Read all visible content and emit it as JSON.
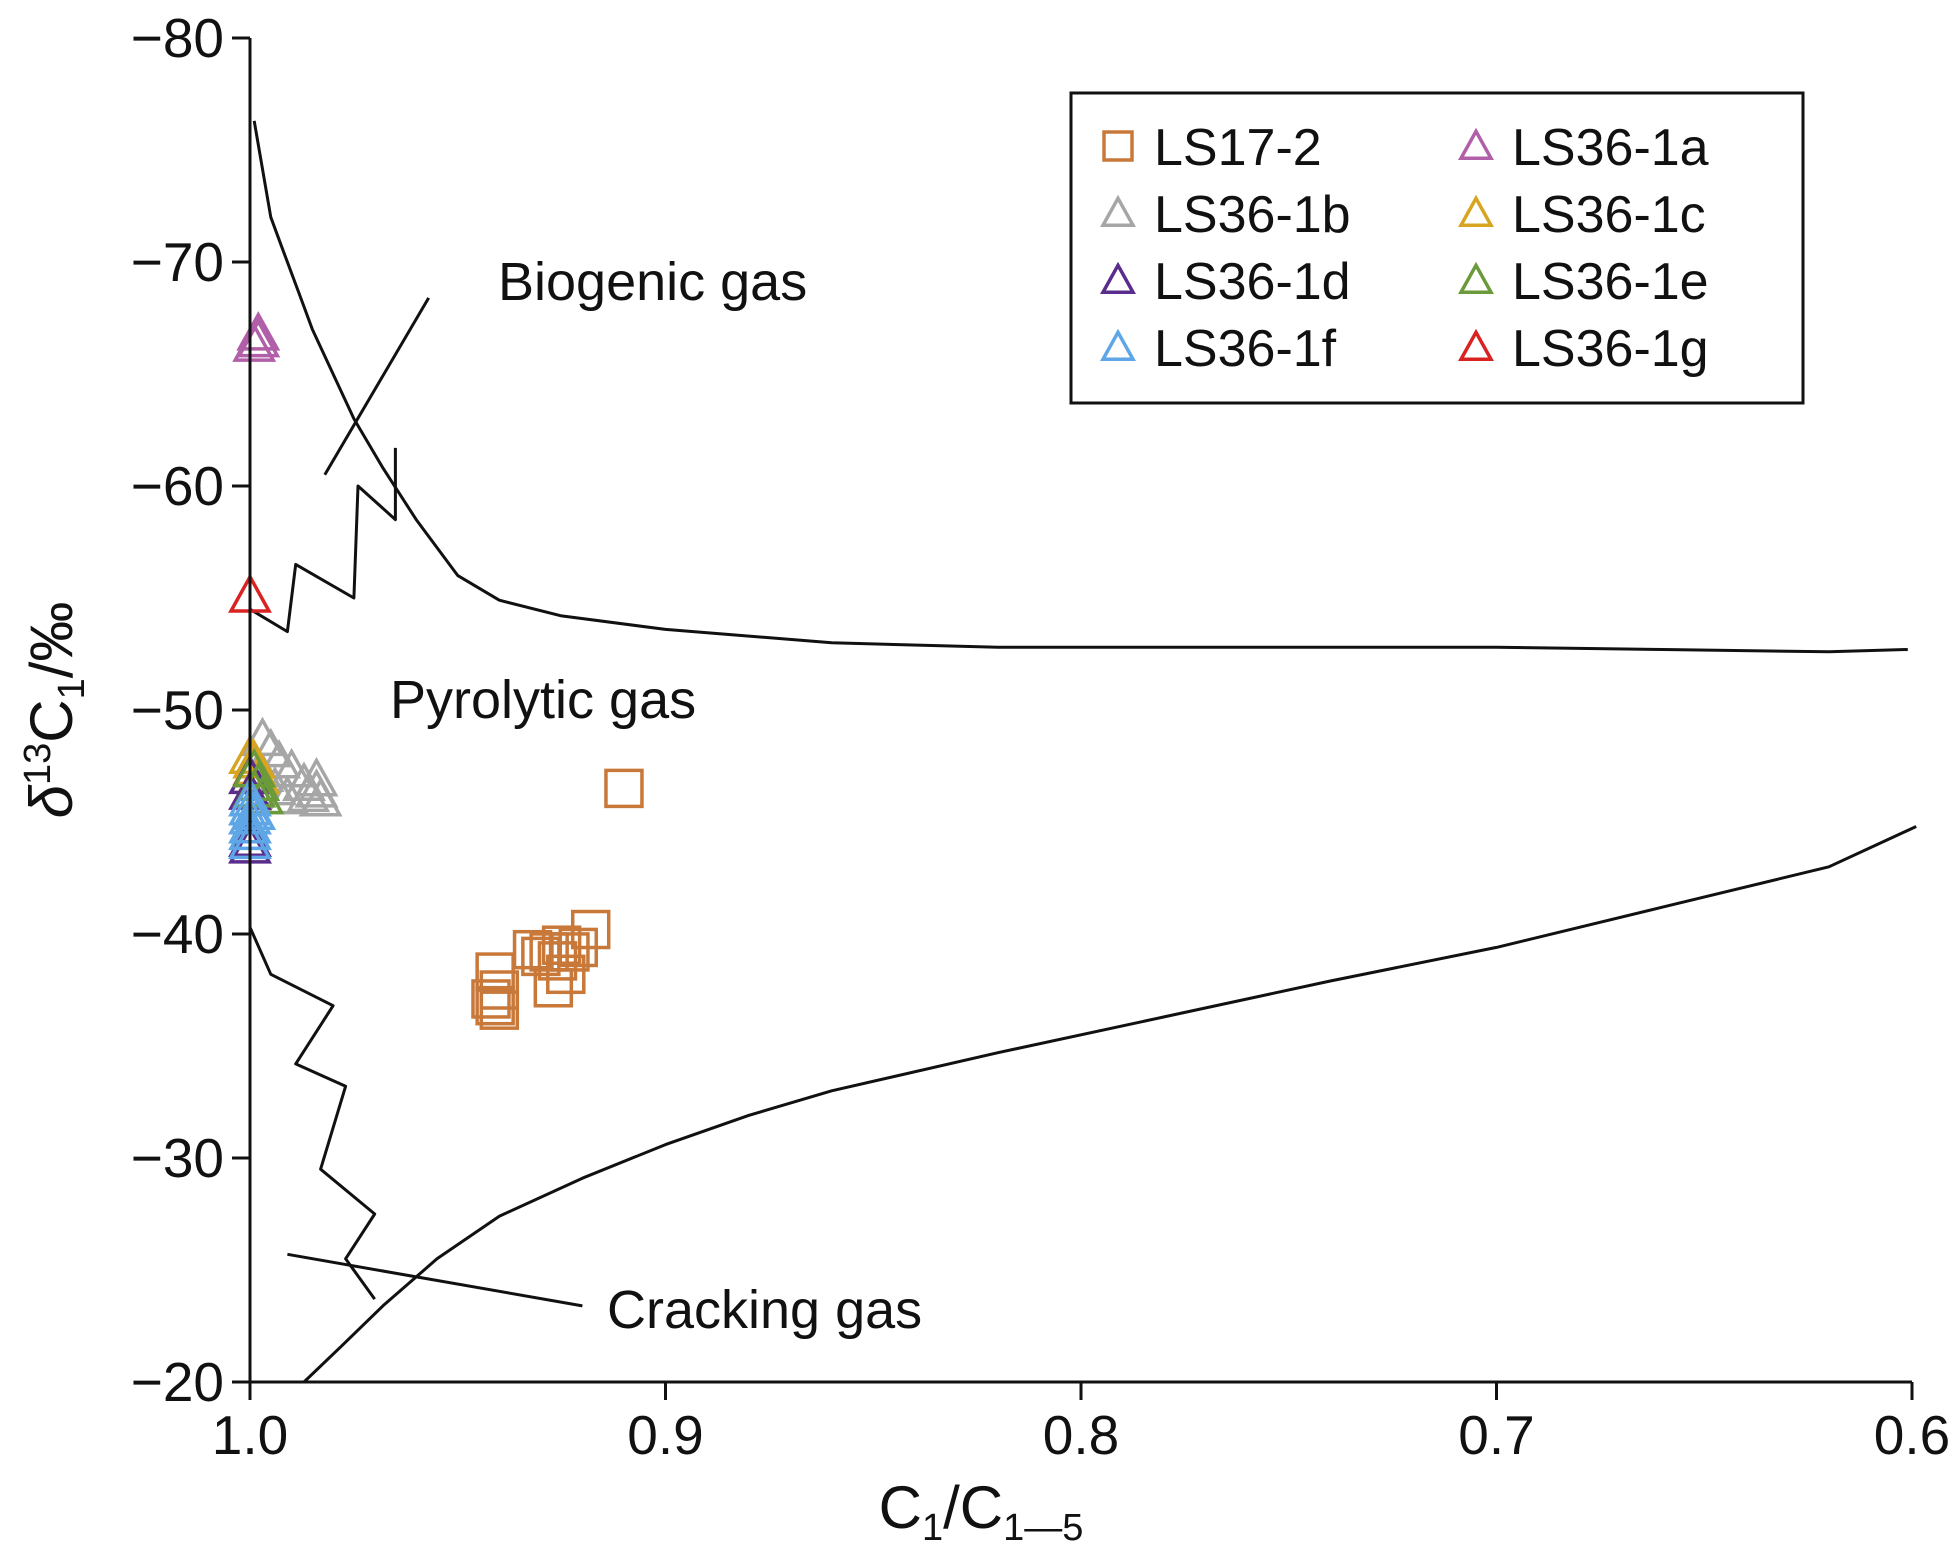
{
  "chart_data": {
    "type": "scatter",
    "title": "",
    "xlabel": "C1/C1–5",
    "xlabel_parts": {
      "base": "C",
      "sub1": "1",
      "slash": "/C",
      "sub2": "1—5"
    },
    "ylabel": "δ13C1/‰",
    "ylabel_parts": {
      "delta": "δ",
      "sup": "13",
      "base": "C",
      "sub": "1",
      "unit": "/‰"
    },
    "xlim": [
      1.0,
      0.6
    ],
    "ylim": [
      -20,
      -80
    ],
    "x_reversed": true,
    "y_reversed": true,
    "x_ticks": [
      1.0,
      0.9,
      0.8,
      0.7,
      0.6
    ],
    "x_tick_labels": [
      "1.0",
      "0.9",
      "0.8",
      "0.7",
      "0.6"
    ],
    "y_ticks": [
      -80,
      -70,
      -60,
      -50,
      -40,
      -30,
      -20
    ],
    "y_tick_labels": [
      "−80",
      "−70",
      "−60",
      "−50",
      "−40",
      "−30",
      "−20"
    ],
    "grid": false,
    "legend_position": "top-right",
    "annotations": [
      {
        "text": "Biogenic gas",
        "x": 0.946,
        "y": -69,
        "leader": [
          [
            0.982,
            -60.5
          ],
          [
            0.957,
            -68.4
          ]
        ]
      },
      {
        "text": "Pyrolytic gas",
        "x": 0.966,
        "y": -50.2
      },
      {
        "text": "Cracking gas",
        "x": 0.926,
        "y": -22.5,
        "leader": [
          [
            0.991,
            -25.7
          ],
          [
            0.92,
            -23.4
          ]
        ]
      }
    ],
    "boundary_lines": [
      {
        "name": "biogenic-boundary",
        "points": [
          [
            0.999,
            -76.3
          ],
          [
            0.995,
            -72
          ],
          [
            0.992,
            -70.5
          ],
          [
            0.988,
            -68.5
          ],
          [
            0.985,
            -67
          ],
          [
            0.98,
            -65
          ],
          [
            0.975,
            -63
          ],
          [
            0.968,
            -60.8
          ],
          [
            0.96,
            -58.5
          ],
          [
            0.95,
            -56
          ],
          [
            0.94,
            -54.9
          ],
          [
            0.925,
            -54.2
          ],
          [
            0.9,
            -53.6
          ],
          [
            0.86,
            -53.0
          ],
          [
            0.82,
            -52.8
          ],
          [
            0.78,
            -52.8
          ],
          [
            0.74,
            -52.8
          ],
          [
            0.7,
            -52.8
          ],
          [
            0.66,
            -52.7
          ],
          [
            0.62,
            -52.6
          ],
          [
            0.601,
            -52.7
          ]
        ]
      },
      {
        "name": "cracking-boundary",
        "points": [
          [
            0.987,
            -20
          ],
          [
            0.978,
            -21.6
          ],
          [
            0.968,
            -23.4
          ],
          [
            0.955,
            -25.5
          ],
          [
            0.94,
            -27.4
          ],
          [
            0.92,
            -29.1
          ],
          [
            0.9,
            -30.6
          ],
          [
            0.88,
            -31.9
          ],
          [
            0.86,
            -33.0
          ],
          [
            0.82,
            -34.7
          ],
          [
            0.78,
            -36.3
          ],
          [
            0.74,
            -37.9
          ],
          [
            0.7,
            -39.4
          ],
          [
            0.66,
            -41.2
          ],
          [
            0.62,
            -43.0
          ],
          [
            0.599,
            -44.8
          ]
        ]
      },
      {
        "name": "pyrolytic-zigzag-upper",
        "points": [
          [
            1.0,
            -54.5
          ],
          [
            0.991,
            -53.5
          ],
          [
            0.989,
            -56.5
          ],
          [
            0.975,
            -55
          ],
          [
            0.974,
            -60
          ],
          [
            0.965,
            -58.5
          ],
          [
            0.965,
            -61.7
          ]
        ]
      },
      {
        "name": "pyrolytic-zigzag-lower",
        "points": [
          [
            1.0,
            -40.3
          ],
          [
            0.995,
            -38.2
          ],
          [
            0.98,
            -36.8
          ],
          [
            0.989,
            -34.2
          ],
          [
            0.977,
            -33.2
          ],
          [
            0.983,
            -29.5
          ],
          [
            0.97,
            -27.5
          ],
          [
            0.977,
            -25.5
          ],
          [
            0.97,
            -23.7
          ]
        ]
      }
    ],
    "series": [
      {
        "name": "LS17-2",
        "marker": "square",
        "color": "#c8793a",
        "points": [
          [
            0.91,
            -46.5
          ],
          [
            0.918,
            -40.2
          ],
          [
            0.921,
            -39.4
          ],
          [
            0.923,
            -39.2
          ],
          [
            0.925,
            -39.5
          ],
          [
            0.926,
            -38.8
          ],
          [
            0.928,
            -39.2
          ],
          [
            0.93,
            -39.0
          ],
          [
            0.932,
            -39.3
          ],
          [
            0.924,
            -38.2
          ],
          [
            0.927,
            -37.6
          ],
          [
            0.941,
            -38.3
          ],
          [
            0.94,
            -37.5
          ],
          [
            0.942,
            -37.1
          ],
          [
            0.94,
            -36.6
          ],
          [
            0.941,
            -36.8
          ]
        ]
      },
      {
        "name": "LS36-1a",
        "marker": "triangle",
        "color": "#b05fa8",
        "points": [
          [
            0.998,
            -66.7
          ],
          [
            0.998,
            -66.4
          ],
          [
            0.999,
            -66.2
          ]
        ]
      },
      {
        "name": "LS36-1b",
        "marker": "triangle",
        "color": "#a6a6a6",
        "points": [
          [
            0.997,
            -48.6
          ],
          [
            0.995,
            -48.1
          ],
          [
            0.993,
            -47.6
          ],
          [
            0.99,
            -47.2
          ],
          [
            0.987,
            -46.6
          ],
          [
            0.986,
            -46.1
          ],
          [
            0.984,
            -46.8
          ],
          [
            0.984,
            -46.3
          ],
          [
            0.983,
            -45.9
          ],
          [
            0.991,
            -46.0
          ],
          [
            0.994,
            -46.4
          ],
          [
            0.997,
            -47.0
          ]
        ]
      },
      {
        "name": "LS36-1c",
        "marker": "triangle",
        "color": "#d7a521",
        "points": [
          [
            1.0,
            -47.8
          ],
          [
            0.999,
            -47.3
          ],
          [
            0.998,
            -46.9
          ],
          [
            0.999,
            -47.6
          ]
        ]
      },
      {
        "name": "LS36-1d",
        "marker": "triangle",
        "color": "#5a2d8c",
        "points": [
          [
            1.0,
            -46.9
          ],
          [
            1.0,
            -46.2
          ],
          [
            1.0,
            -44.1
          ],
          [
            1.0,
            -43.8
          ]
        ]
      },
      {
        "name": "LS36-1e",
        "marker": "triangle",
        "color": "#6b9a3a",
        "points": [
          [
            0.999,
            -47.2
          ],
          [
            0.998,
            -46.6
          ],
          [
            0.997,
            -46.0
          ],
          [
            0.999,
            -46.3
          ]
        ]
      },
      {
        "name": "LS36-1f",
        "marker": "triangle",
        "color": "#5ea6e6",
        "points": [
          [
            1.0,
            -45.9
          ],
          [
            1.0,
            -45.5
          ],
          [
            1.0,
            -45.1
          ],
          [
            1.0,
            -44.7
          ],
          [
            1.0,
            -44.4
          ],
          [
            1.0,
            -44.0
          ],
          [
            0.999,
            -45.3
          ]
        ]
      },
      {
        "name": "LS36-1g",
        "marker": "triangle",
        "color": "#d92323",
        "points": [
          [
            1.0,
            -55.0
          ]
        ]
      }
    ],
    "legend": [
      {
        "label": "LS17-2",
        "marker": "square",
        "color": "#c8793a"
      },
      {
        "label": "LS36-1a",
        "marker": "triangle",
        "color": "#b05fa8"
      },
      {
        "label": "LS36-1b",
        "marker": "triangle",
        "color": "#a6a6a6"
      },
      {
        "label": "LS36-1c",
        "marker": "triangle",
        "color": "#d7a521"
      },
      {
        "label": "LS36-1d",
        "marker": "triangle",
        "color": "#5a2d8c"
      },
      {
        "label": "LS36-1e",
        "marker": "triangle",
        "color": "#6b9a3a"
      },
      {
        "label": "LS36-1f",
        "marker": "triangle",
        "color": "#5ea6e6"
      },
      {
        "label": "LS36-1g",
        "marker": "triangle",
        "color": "#d92323"
      }
    ]
  }
}
